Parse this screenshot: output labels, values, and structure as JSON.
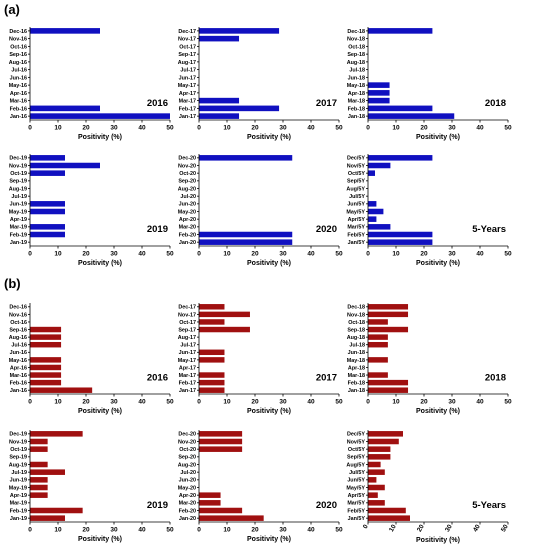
{
  "sections": [
    {
      "label": "(a)",
      "color": "#1010c0",
      "charts": [
        {
          "type": "bar",
          "orientation": "horizontal",
          "title": "2016",
          "xlabel": "Positivity (%)",
          "xlim": [
            0,
            50
          ],
          "xticks": [
            "0",
            "10",
            "20",
            "30",
            "40",
            "50"
          ],
          "categories": [
            "Dec-16",
            "Nov-16",
            "Oct-16",
            "Sep-16",
            "Aug-16",
            "Jul-16",
            "Jun-16",
            "May-16",
            "Apr-16",
            "Mar-16",
            "Feb-16",
            "Jan-16"
          ],
          "values": [
            25,
            0,
            0,
            0,
            0,
            0,
            0,
            0,
            0,
            0,
            25,
            50
          ]
        },
        {
          "type": "bar",
          "orientation": "horizontal",
          "title": "2017",
          "xlabel": "Positivity (%)",
          "xlim": [
            0,
            50
          ],
          "xticks": [
            "0",
            "10",
            "20",
            "30",
            "40",
            "50"
          ],
          "categories": [
            "Dec-17",
            "Nov-17",
            "Oct-17",
            "Sep-17",
            "Aug-17",
            "Jul-17",
            "Jun-17",
            "May-17",
            "Apr-17",
            "Mar-17",
            "Feb-17",
            "Jan-17"
          ],
          "values": [
            28.6,
            14.3,
            0,
            0,
            0,
            0,
            0,
            0,
            0,
            14.3,
            28.6,
            14.3
          ]
        },
        {
          "type": "bar",
          "orientation": "horizontal",
          "title": "2018",
          "xlabel": "Positivity (%)",
          "xlim": [
            0,
            50
          ],
          "xticks": [
            "0",
            "10",
            "20",
            "30",
            "40",
            "50"
          ],
          "categories": [
            "Dec-18",
            "Nov-18",
            "Oct-18",
            "Sep-18",
            "Aug-18",
            "Jul-18",
            "Jun-18",
            "May-18",
            "Apr-18",
            "Mar-18",
            "Feb-18",
            "Jan-18"
          ],
          "values": [
            23,
            0,
            0,
            0,
            0,
            0,
            0,
            7.7,
            7.7,
            7.7,
            23,
            30.8
          ]
        },
        {
          "type": "bar",
          "orientation": "horizontal",
          "title": "2019",
          "xlabel": "Positivity (%)",
          "xlim": [
            0,
            50
          ],
          "xticks": [
            "0",
            "10",
            "20",
            "30",
            "40",
            "50"
          ],
          "categories": [
            "Dec-19",
            "Nov-19",
            "Oct-19",
            "Sep-19",
            "Aug-19",
            "Jul-19",
            "Jun-19",
            "May-19",
            "Apr-19",
            "Mar-19",
            "Feb-19",
            "Jan-19"
          ],
          "values": [
            12.5,
            25,
            12.5,
            0,
            0,
            0,
            12.5,
            12.5,
            0,
            12.5,
            12.5,
            0
          ]
        },
        {
          "type": "bar",
          "orientation": "horizontal",
          "title": "2020",
          "xlabel": "Positivity (%)",
          "xlim": [
            0,
            50
          ],
          "xticks": [
            "0",
            "10",
            "20",
            "30",
            "40",
            "50"
          ],
          "categories": [
            "Dec-20",
            "Nov-20",
            "Oct-20",
            "Sep-20",
            "Aug-20",
            "Jul-20",
            "Jun-20",
            "May-20",
            "Apr-20",
            "Mar-20",
            "Feb-20",
            "Jan-20"
          ],
          "values": [
            33.3,
            0,
            0,
            0,
            0,
            0,
            0,
            0,
            0,
            0,
            33.3,
            33.3
          ]
        },
        {
          "type": "bar",
          "orientation": "horizontal",
          "title": "5-Years",
          "xlabel": "Positivity (%)",
          "xlim": [
            0,
            50
          ],
          "xticks": [
            "0",
            "10",
            "20",
            "30",
            "40",
            "50"
          ],
          "categories": [
            "Dec/5Y",
            "Nov/5Y",
            "Oct/5Y",
            "Sep/5Y",
            "Aug/5Y",
            "Jul/5Y",
            "Jun/5Y",
            "May/5Y",
            "Apr/5Y",
            "Mar/5Y",
            "Feb/5Y",
            "Jan/5Y"
          ],
          "values": [
            23,
            8,
            2.5,
            0,
            0,
            0,
            3,
            5.5,
            3,
            8,
            23,
            23
          ]
        }
      ]
    },
    {
      "label": "(b)",
      "color": "#a01010",
      "charts": [
        {
          "type": "bar",
          "orientation": "horizontal",
          "title": "2016",
          "xlabel": "Positivity (%)",
          "xlim": [
            0,
            50
          ],
          "xticks": [
            "0",
            "10",
            "20",
            "30",
            "40",
            "50"
          ],
          "categories": [
            "Dec-16",
            "Nov-16",
            "Oct-16",
            "Sep-16",
            "Aug-16",
            "Jul-16",
            "Jun-16",
            "May-16",
            "Apr-16",
            "Mar-16",
            "Feb-16",
            "Jan-16"
          ],
          "values": [
            0,
            0,
            0,
            11.1,
            11.1,
            11.1,
            0,
            11.1,
            11.1,
            11.1,
            11.1,
            22.2
          ]
        },
        {
          "type": "bar",
          "orientation": "horizontal",
          "title": "2017",
          "xlabel": "Positivity (%)",
          "xlim": [
            0,
            50
          ],
          "xticks": [
            "0",
            "10",
            "20",
            "30",
            "40",
            "50"
          ],
          "categories": [
            "Dec-17",
            "Nov-17",
            "Oct-17",
            "Sep-17",
            "Aug-17",
            "Jul-17",
            "Jun-17",
            "May-17",
            "Apr-17",
            "Mar-17",
            "Feb-17",
            "Jan-17"
          ],
          "values": [
            9.1,
            18.2,
            9.1,
            18.2,
            0,
            0,
            9.1,
            9.1,
            0,
            9.1,
            9.1,
            9.1
          ]
        },
        {
          "type": "bar",
          "orientation": "horizontal",
          "title": "2018",
          "xlabel": "Positivity (%)",
          "xlim": [
            0,
            50
          ],
          "xticks": [
            "0",
            "10",
            "20",
            "30",
            "40",
            "50"
          ],
          "categories": [
            "Dec-18",
            "Nov-18",
            "Oct-18",
            "Sep-18",
            "Aug-18",
            "Jul-18",
            "Jun-18",
            "May-18",
            "Apr-18",
            "Mar-18",
            "Feb-18",
            "Jan-18"
          ],
          "values": [
            14.3,
            14.3,
            7.1,
            14.3,
            7.1,
            7.1,
            0,
            7.1,
            0,
            7.1,
            14.3,
            14.3
          ]
        },
        {
          "type": "bar",
          "orientation": "horizontal",
          "title": "2019",
          "xlabel": "Positivity (%)",
          "xlim": [
            0,
            50
          ],
          "xticks": [
            "0",
            "10",
            "20",
            "30",
            "40",
            "50"
          ],
          "categories": [
            "Dec-19",
            "Nov-19",
            "Oct-19",
            "Sep-19",
            "Aug-19",
            "Jul-19",
            "Jun-19",
            "May-19",
            "Apr-19",
            "Mar-19",
            "Feb-19",
            "Jan-19"
          ],
          "values": [
            18.8,
            6.3,
            6.3,
            0,
            6.3,
            12.5,
            6.3,
            6.3,
            6.3,
            0,
            18.8,
            12.5
          ]
        },
        {
          "type": "bar",
          "orientation": "horizontal",
          "title": "2020",
          "xlabel": "Positivity (%)",
          "xlim": [
            0,
            50
          ],
          "xticks": [
            "0",
            "10",
            "20",
            "30",
            "40",
            "50"
          ],
          "categories": [
            "Dec-20",
            "Nov-20",
            "Oct-20",
            "Sep-20",
            "Aug-20",
            "Jul-20",
            "Jun-20",
            "May-20",
            "Apr-20",
            "Mar-20",
            "Feb-20",
            "Jan-20"
          ],
          "values": [
            15.4,
            15.4,
            15.4,
            0,
            0,
            0,
            0,
            0,
            7.7,
            7.7,
            15.4,
            23.1
          ]
        },
        {
          "type": "bar",
          "orientation": "horizontal",
          "title": "5-Years",
          "xlabel": "Positivity (%)",
          "xlim": [
            0,
            50
          ],
          "xticks": [
            "0",
            "10",
            "20",
            "30",
            "40",
            "50"
          ],
          "rotated_xticks": true,
          "categories": [
            "Dec/5Y",
            "Nov/5Y",
            "Oct/5Y",
            "Sep/5Y",
            "Aug/5Y",
            "Jul/5Y",
            "Jun/5Y",
            "May/5Y",
            "Apr/5Y",
            "Mar/5Y",
            "Feb/5Y",
            "Jan/5Y"
          ],
          "values": [
            12.5,
            11,
            8,
            8,
            4.5,
            6,
            3,
            6,
            3.5,
            6,
            13.5,
            15
          ]
        }
      ]
    }
  ]
}
